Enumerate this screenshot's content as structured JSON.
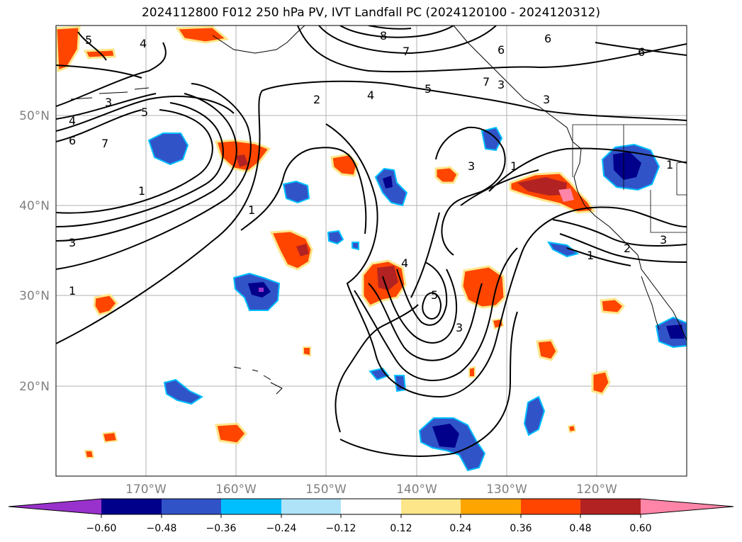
{
  "title": "2024112800 F012 250 hPa PV, IVT Landfall PC (2024120100 - 2024120312)",
  "map": {
    "lat_labels": [
      "50°N",
      "40°N",
      "30°N",
      "20°N"
    ],
    "lon_labels": [
      "170°W",
      "160°W",
      "150°W",
      "140°W",
      "130°W",
      "120°W"
    ],
    "contour_labels": [
      "5",
      "4",
      "3",
      "4",
      "6",
      "7",
      "5",
      "2",
      "4",
      "5",
      "7",
      "6",
      "8",
      "7",
      "6",
      "3",
      "1",
      "3",
      "1",
      "1",
      "3",
      "1",
      "3",
      "1",
      "2",
      "3",
      "1",
      "4",
      "5",
      "3",
      "6"
    ]
  },
  "colorbar": {
    "ticks": [
      "−0.60",
      "−0.48",
      "−0.36",
      "−0.24",
      "−0.12",
      "0.12",
      "0.24",
      "0.36",
      "0.48",
      "0.60"
    ],
    "colors": [
      "#9932cc",
      "#00008b",
      "#3153c8",
      "#00bfff",
      "#aee3f8",
      "#ffffff",
      "#fde68a",
      "#ffa500",
      "#ff4500",
      "#b22222",
      "#ff85a8"
    ]
  }
}
